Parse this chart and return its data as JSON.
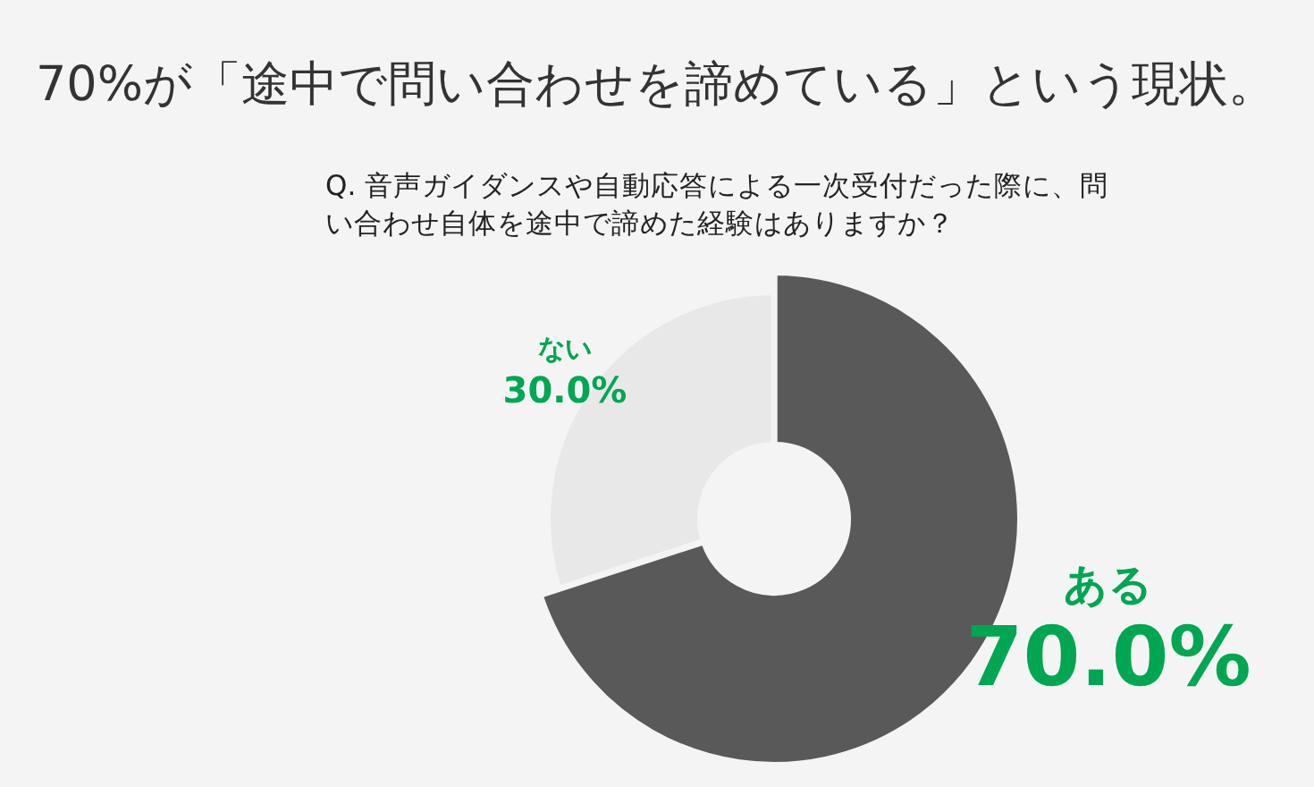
{
  "chart_data": {
    "type": "donut",
    "title": "70%が「途中で問い合わせを諦めている」という現状。",
    "subtitle": "Q. 音声ガイダンスや自動応答による一次受付だった際に、問い合わせ自体を途中で諦めた経験はありますか？",
    "categories": [
      "ある",
      "ない"
    ],
    "values": [
      70.0,
      30.0
    ],
    "colors": [
      "#595959",
      "#e8e8e8"
    ],
    "value_labels": [
      "70.0%",
      "30.0%"
    ],
    "legend": false
  }
}
